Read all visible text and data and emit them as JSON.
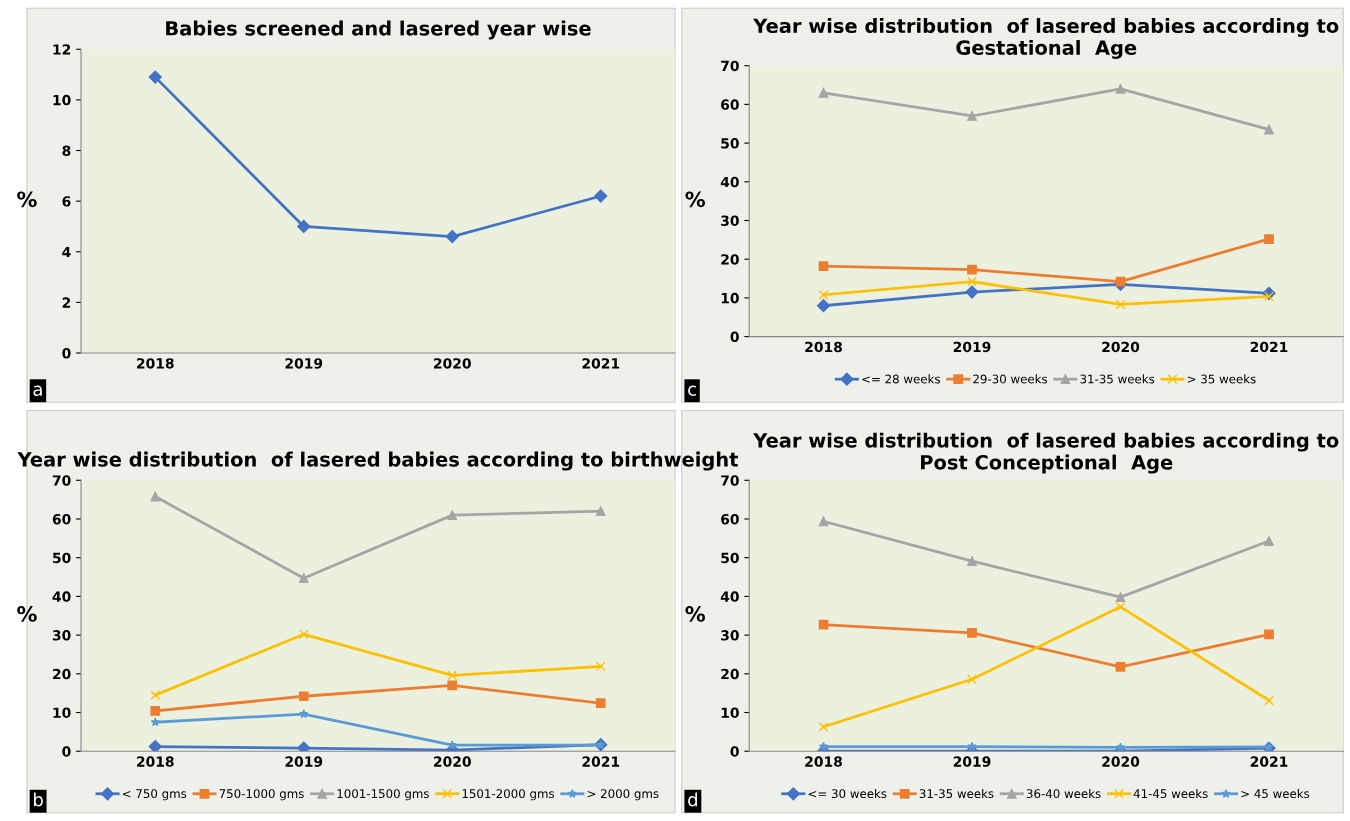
{
  "chart_data": [
    {
      "type": "line",
      "title": "Babies screened and lasered year wise",
      "ylabel": "%",
      "categories": [
        "2018",
        "2019",
        "2020",
        "2021"
      ],
      "series": [
        {
          "color": "#4472c4",
          "values": [
            10.9,
            5.0,
            4.6,
            6.2
          ],
          "marker": "diamond"
        }
      ],
      "ylim": [
        0,
        12
      ],
      "yticks": [
        0,
        2,
        4,
        6,
        8,
        10,
        12
      ],
      "grid": false,
      "legend": false,
      "annotations": [
        "a"
      ]
    },
    {
      "type": "line",
      "title": "Year wise distribution  of lasered babies according to Gestational  Age",
      "ylabel": "%",
      "categories": [
        "2018",
        "2019",
        "2020",
        "2021"
      ],
      "series": [
        {
          "name": "<= 28 weeks",
          "color": "#4472c4",
          "values": [
            8,
            11.5,
            13.5,
            11.2
          ],
          "marker": "diamond"
        },
        {
          "name": "29-30 weeks",
          "color": "#ed7d31",
          "values": [
            18.2,
            17.3,
            14.2,
            25.2
          ],
          "marker": "square"
        },
        {
          "name": "31-35 weeks",
          "color": "#a5a5a5",
          "values": [
            63,
            57,
            64,
            53.5
          ],
          "marker": "triangle"
        },
        {
          "name": "> 35 weeks",
          "color": "#ffc000",
          "values": [
            10.8,
            14.2,
            8.3,
            10.4
          ],
          "marker": "cross"
        }
      ],
      "ylim": [
        0,
        70
      ],
      "yticks": [
        0,
        10,
        20,
        30,
        40,
        50,
        60,
        70
      ],
      "grid": false,
      "legend": "bottom",
      "annotations": [
        "c"
      ]
    },
    {
      "type": "line",
      "title": "Year wise distribution  of lasered babies according to birthweight",
      "ylabel": "%",
      "categories": [
        "2018",
        "2019",
        "2020",
        "2021"
      ],
      "series": [
        {
          "name": "< 750 gms",
          "color": "#4472c4",
          "values": [
            1.2,
            0.8,
            0.3,
            1.7
          ],
          "marker": "diamond"
        },
        {
          "name": "750-1000 gms",
          "color": "#ed7d31",
          "values": [
            10.4,
            14.2,
            17.0,
            12.4
          ],
          "marker": "square"
        },
        {
          "name": "1001-1500 gms",
          "color": "#a5a5a5",
          "values": [
            65.8,
            44.7,
            61,
            62
          ],
          "marker": "triangle"
        },
        {
          "name": "1501-2000 gms",
          "color": "#ffc000",
          "values": [
            14.5,
            30.2,
            19.6,
            21.9
          ],
          "marker": "cross"
        },
        {
          "name": "> 2000 gms",
          "color": "#5b9bd5",
          "values": [
            7.5,
            9.6,
            1.6,
            1.6
          ],
          "marker": "star"
        }
      ],
      "ylim": [
        0,
        70
      ],
      "yticks": [
        0,
        10,
        20,
        30,
        40,
        50,
        60,
        70
      ],
      "grid": false,
      "legend": "bottom",
      "annotations": [
        "b"
      ]
    },
    {
      "type": "line",
      "title": "Year wise distribution  of lasered babies according to Post Conceptional  Age",
      "ylabel": "%",
      "categories": [
        "2018",
        "2019",
        "2020",
        "2021"
      ],
      "series": [
        {
          "name": "<= 30 weeks",
          "color": "#4472c4",
          "values": [
            0,
            0,
            0,
            0.8
          ],
          "marker": "diamond"
        },
        {
          "name": "31-35 weeks",
          "color": "#ed7d31",
          "values": [
            32.7,
            30.6,
            21.8,
            30.2
          ],
          "marker": "square"
        },
        {
          "name": "36-40 weeks",
          "color": "#a5a5a5",
          "values": [
            59.4,
            49.1,
            39.8,
            54.3
          ],
          "marker": "triangle"
        },
        {
          "name": "41-45 weeks",
          "color": "#ffc000",
          "values": [
            6.3,
            18.6,
            37.3,
            13.1
          ],
          "marker": "cross"
        },
        {
          "name": "> 45 weeks",
          "color": "#5b9bd5",
          "values": [
            1.2,
            1.2,
            1.0,
            1.1
          ],
          "marker": "star"
        }
      ],
      "ylim": [
        0,
        70
      ],
      "yticks": [
        0,
        10,
        20,
        30,
        40,
        50,
        60,
        70
      ],
      "grid": false,
      "legend": "bottom",
      "annotations": [
        "d"
      ]
    }
  ]
}
